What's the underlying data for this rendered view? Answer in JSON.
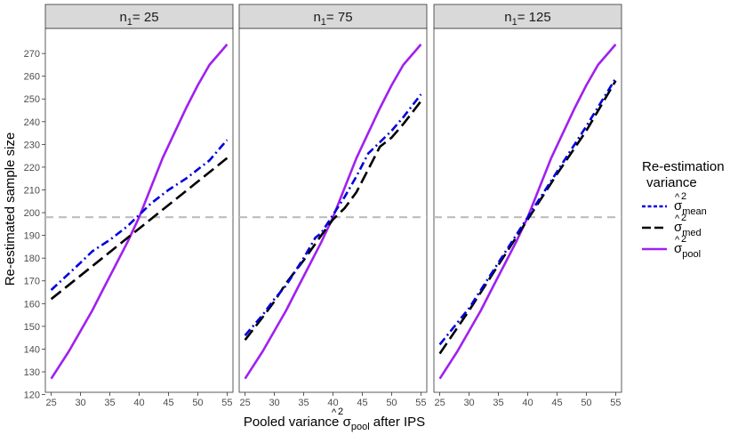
{
  "chart_data": {
    "type": "line",
    "ylabel": "Re-estimated sample size",
    "xlabel": {
      "prefix": "Pooled variance ",
      "symbol": "σ",
      "hat": "^",
      "superscript": "2",
      "subscript": "pool",
      "suffix": " after IPS"
    },
    "x_ticks": [
      25,
      30,
      35,
      40,
      45,
      50,
      55
    ],
    "y_ticks": [
      120,
      130,
      140,
      150,
      160,
      170,
      180,
      190,
      200,
      210,
      220,
      230,
      240,
      250,
      260,
      270
    ],
    "xlim": [
      24,
      56
    ],
    "ylim": [
      121,
      281
    ],
    "reference_line": {
      "y": 198,
      "color": "#bdbdbd",
      "style": "dashed"
    },
    "grid": false,
    "legend": {
      "title_line1": "Re-estimation",
      "title_line2": "variance",
      "position": "right",
      "entries": [
        {
          "key": "mean",
          "symbol": "σ",
          "hat": "^",
          "superscript": "2",
          "subscript": "mean",
          "color": "#0000dd",
          "dash": "mean"
        },
        {
          "key": "med",
          "symbol": "σ",
          "hat": "^",
          "superscript": "2",
          "subscript": "med",
          "color": "#000000",
          "dash": "med"
        },
        {
          "key": "pool",
          "symbol": "σ",
          "hat": "^",
          "superscript": "2",
          "subscript": "pool",
          "color": "#a020f0",
          "dash": "pool"
        }
      ]
    },
    "panels": [
      {
        "strip": {
          "label": "n",
          "subscript": "1",
          "value": "= 25"
        },
        "series": [
          {
            "key": "pool",
            "x": [
              25,
              26,
              28,
              30,
              32,
              34,
              36,
              38,
              40,
              42,
              44,
              46,
              48,
              50,
              52,
              54,
              55
            ],
            "values": [
              127,
              131,
              139,
              148,
              157,
              167,
              177,
              187,
              198,
              211,
              224,
              235,
              246,
              256,
              265,
              271,
              274
            ]
          },
          {
            "key": "mean",
            "x": [
              25,
              30,
              32,
              35,
              38,
              40,
              42,
              45,
              48,
              50,
              52,
              54,
              55
            ],
            "values": [
              166,
              178,
              183,
              188,
              194,
              199,
              204,
              210,
              215,
              219,
              223,
              229,
              232
            ]
          },
          {
            "key": "med",
            "x": [
              25,
              55
            ],
            "values": [
              162,
              224
            ]
          }
        ]
      },
      {
        "strip": {
          "label": "n",
          "subscript": "1",
          "value": "= 75"
        },
        "series": [
          {
            "key": "pool",
            "x": [
              25,
              26,
              28,
              30,
              32,
              34,
              36,
              38,
              40,
              42,
              44,
              46,
              48,
              50,
              52,
              54,
              55
            ],
            "values": [
              127,
              131,
              139,
              148,
              157,
              167,
              177,
              187,
              198,
              211,
              224,
              235,
              246,
              256,
              265,
              271,
              274
            ]
          },
          {
            "key": "mean",
            "x": [
              25,
              28,
              30,
              32,
              35,
              37,
              38,
              40,
              42,
              44,
              46,
              48,
              50,
              52,
              55
            ],
            "values": [
              146,
              155,
              162,
              168,
              180,
              189,
              191,
              199,
              207,
              216,
              226,
              231,
              236,
              242,
              252
            ]
          },
          {
            "key": "med",
            "x": [
              25,
              28,
              30,
              32,
              35,
              38,
              40,
              42,
              44,
              46,
              48,
              50,
              52,
              55
            ],
            "values": [
              144,
              154,
              161,
              169,
              179,
              190,
              197,
              202,
              209,
              219,
              229,
              233,
              239,
              249
            ]
          }
        ]
      },
      {
        "strip": {
          "label": "n",
          "subscript": "1",
          "value": "= 125"
        },
        "series": [
          {
            "key": "pool",
            "x": [
              25,
              26,
              28,
              30,
              32,
              34,
              36,
              38,
              40,
              42,
              44,
              46,
              48,
              50,
              52,
              54,
              55
            ],
            "values": [
              127,
              131,
              139,
              148,
              157,
              167,
              177,
              187,
              198,
              211,
              224,
              235,
              246,
              256,
              265,
              271,
              274
            ]
          },
          {
            "key": "mean",
            "x": [
              25,
              30,
              35,
              40,
              45,
              50,
              55
            ],
            "values": [
              142,
              158,
              178,
              198,
              218,
              238,
              259
            ]
          },
          {
            "key": "med",
            "x": [
              25,
              30,
              35,
              40,
              45,
              50,
              55
            ],
            "values": [
              138,
              157,
              177,
              197,
              217,
              236,
              258
            ]
          }
        ]
      }
    ]
  }
}
